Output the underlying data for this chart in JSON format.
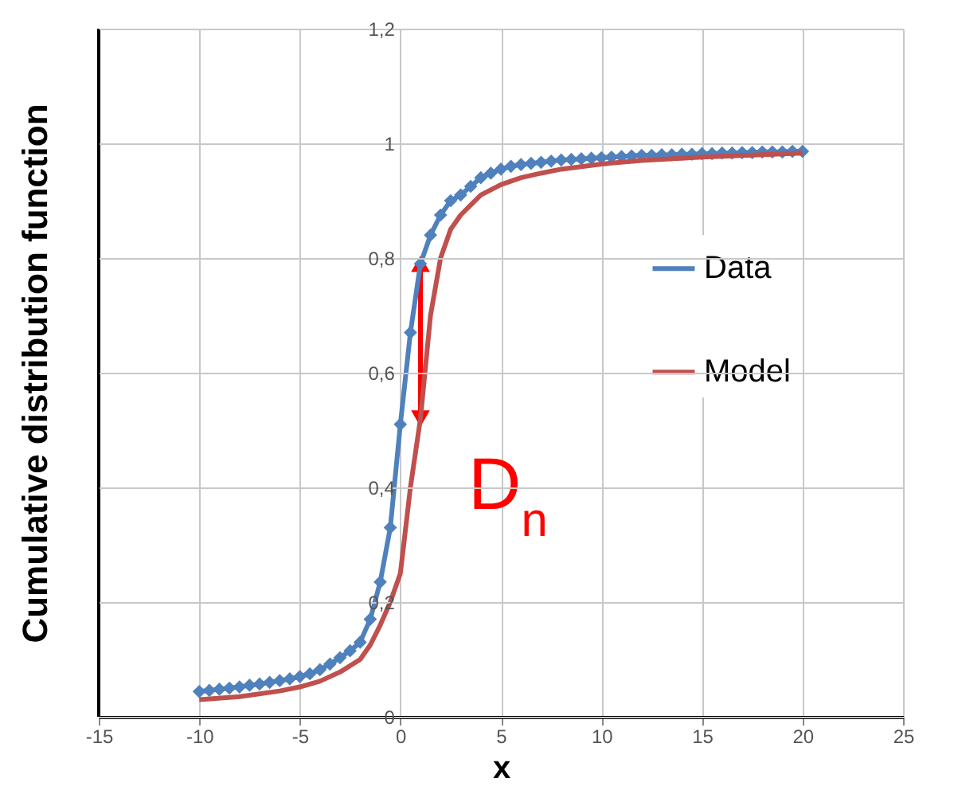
{
  "chart_data": {
    "type": "line",
    "xlabel": "x",
    "ylabel": "Cumulative distribution function",
    "xlim": [
      -15,
      25
    ],
    "xticks": [
      -15,
      -10,
      -5,
      0,
      5,
      10,
      15,
      20,
      25
    ],
    "ylim": [
      0,
      1.2
    ],
    "yticks": [
      0,
      {
        "value": 0.2,
        "label": "0,2"
      },
      {
        "value": 0.4,
        "label": "0,4"
      },
      {
        "value": 0.6,
        "label": "0,6"
      },
      {
        "value": 0.8,
        "label": "0,8"
      },
      1,
      {
        "value": 1.2,
        "label": "1,2"
      }
    ],
    "grid": true,
    "legend": "right",
    "line_style": "solid",
    "annotations": [
      {
        "text": "D$_{n}$",
        "x": 1,
        "y": 0.79
      }
    ],
    "series": [
      {
        "name": "Data",
        "color": "#4f81bd",
        "marker": "diamond",
        "x": [
          -10,
          -9.5,
          -9,
          -8.5,
          -8,
          -7.5,
          -7,
          -6.5,
          -6,
          -5.5,
          -5,
          -4.5,
          -4,
          -3.5,
          -3,
          -2.5,
          -2,
          -1.5,
          -1,
          -0.5,
          0,
          0.5,
          1,
          1.5,
          2,
          2.5,
          3,
          3.5,
          4,
          4.5,
          5,
          5.5,
          6,
          6.5,
          7,
          7.5,
          8,
          8.5,
          9,
          9.5,
          10,
          10.5,
          11,
          11.5,
          12,
          12.5,
          13,
          13.5,
          14,
          14.5,
          15,
          15.5,
          16,
          16.5,
          17,
          17.5,
          18,
          18.5,
          19,
          19.5,
          20
        ],
        "values": [
          0.044,
          0.046,
          0.048,
          0.05,
          0.052,
          0.055,
          0.057,
          0.06,
          0.063,
          0.066,
          0.07,
          0.075,
          0.082,
          0.092,
          0.103,
          0.115,
          0.13,
          0.17,
          0.235,
          0.33,
          0.51,
          0.67,
          0.79,
          0.84,
          0.875,
          0.9,
          0.91,
          0.925,
          0.94,
          0.948,
          0.955,
          0.96,
          0.963,
          0.965,
          0.967,
          0.969,
          0.971,
          0.972,
          0.973,
          0.974,
          0.975,
          0.976,
          0.977,
          0.978,
          0.979,
          0.979,
          0.98,
          0.98,
          0.981,
          0.981,
          0.982,
          0.982,
          0.983,
          0.983,
          0.984,
          0.984,
          0.985,
          0.985,
          0.985,
          0.986,
          0.986
        ]
      },
      {
        "name": "Model",
        "color": "#c0504d",
        "x": [
          -10,
          -8,
          -6,
          -5,
          -4,
          -3,
          -2,
          -1.5,
          -1,
          -0.5,
          0,
          0.5,
          1,
          1.5,
          2,
          2.5,
          3,
          4,
          5,
          6,
          7,
          8,
          10,
          12,
          15,
          20
        ],
        "values": [
          0.03,
          0.035,
          0.045,
          0.052,
          0.062,
          0.078,
          0.1,
          0.125,
          0.16,
          0.2,
          0.25,
          0.4,
          0.52,
          0.7,
          0.8,
          0.85,
          0.875,
          0.91,
          0.928,
          0.94,
          0.948,
          0.955,
          0.964,
          0.97,
          0.976,
          0.983
        ]
      }
    ]
  }
}
